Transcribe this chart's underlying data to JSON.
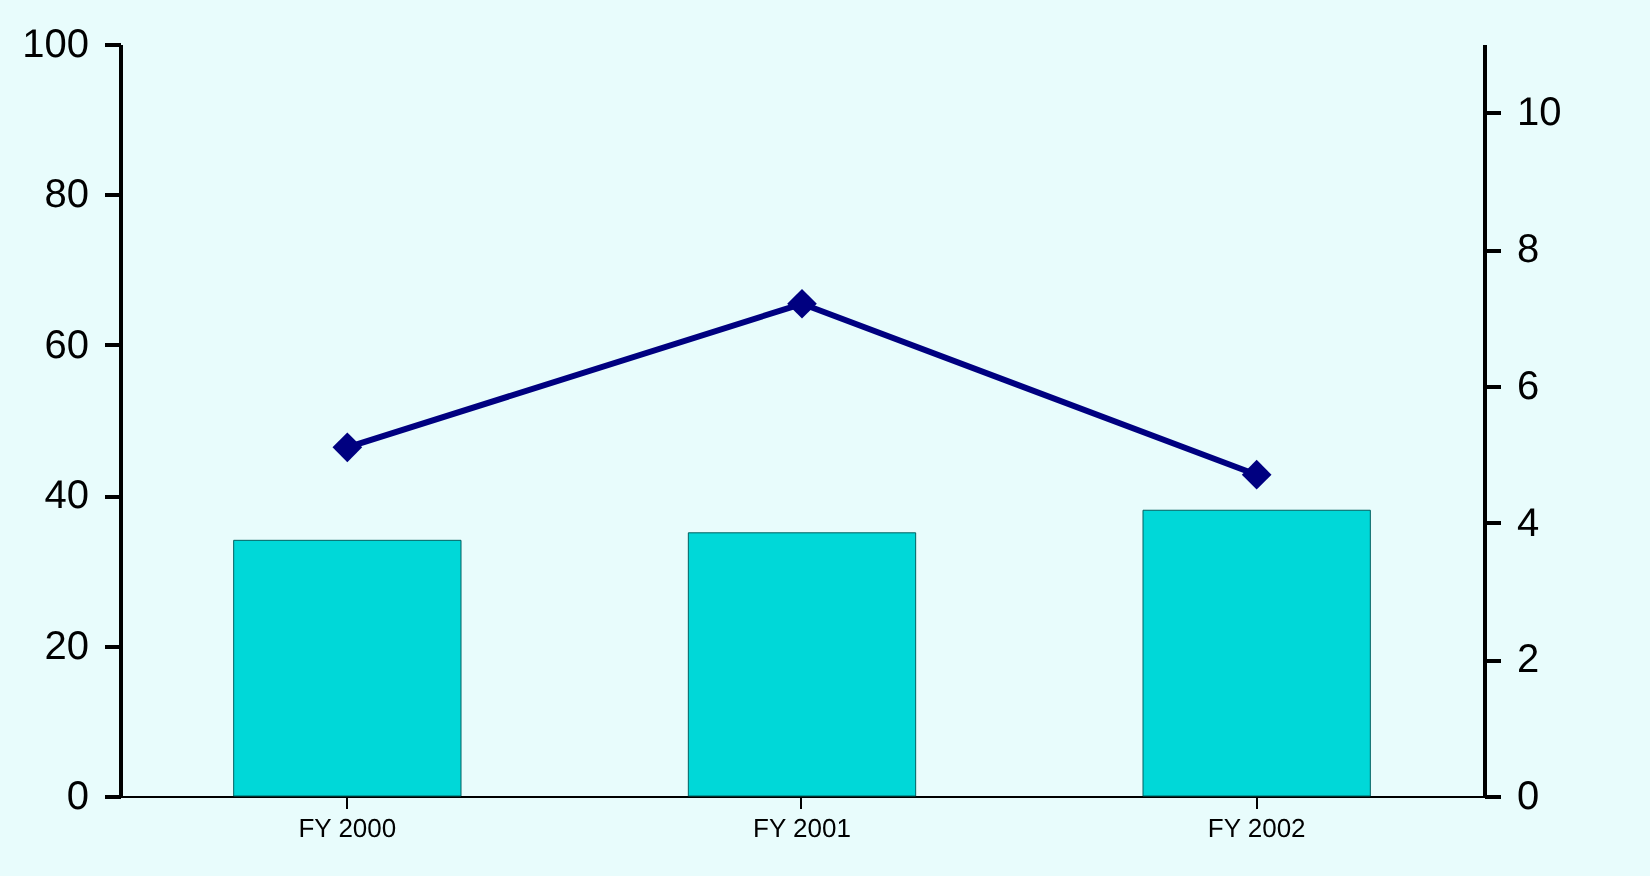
{
  "chart_data": {
    "type": "bar",
    "categories": [
      "FY 2000",
      "FY 2001",
      "FY 2002"
    ],
    "series": [
      {
        "color": "#00d8d8",
        "values": [
          34,
          35,
          38
        ]
      },
      {
        "type": "line",
        "axis": "y2",
        "color": "#000080",
        "marker": "diamond",
        "values": [
          5.1,
          7.2,
          4.7
        ]
      }
    ],
    "ylim": [
      0,
      100
    ],
    "yticks": [
      0,
      20,
      40,
      60,
      80,
      100
    ],
    "y2lim": [
      0,
      11
    ],
    "y2ticks": [
      0,
      2,
      4,
      6,
      8,
      10
    ],
    "grid": false
  }
}
